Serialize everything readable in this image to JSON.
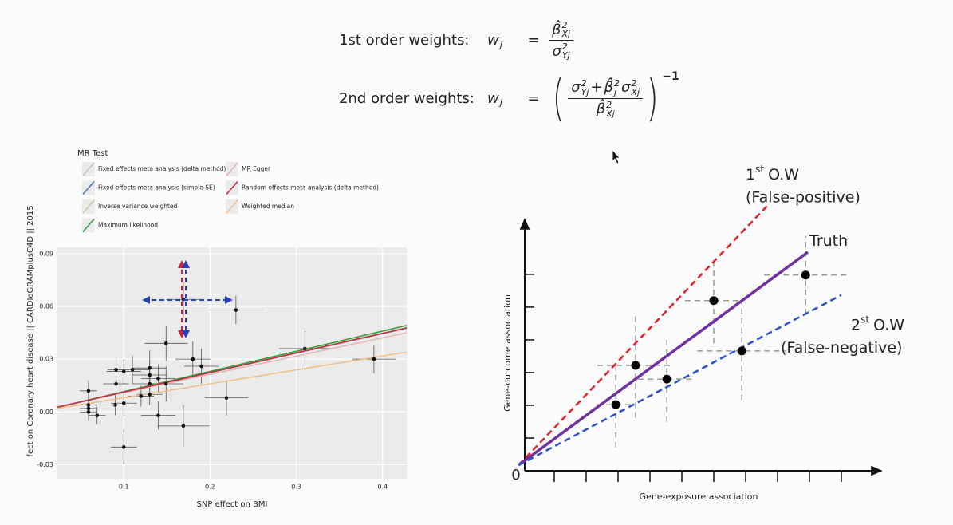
{
  "formulas": [
    {
      "label": "1st order weights:",
      "lhs": {
        "base": "w",
        "sub": "j"
      },
      "eq": "=",
      "numerator": [
        {
          "base": "β̂",
          "sup": "2",
          "sub": "Xj"
        }
      ],
      "denominator": [
        {
          "base": "σ",
          "sup": "2",
          "sub": "Yj"
        }
      ]
    },
    {
      "label": "2nd order weights:",
      "lhs": {
        "base": "w",
        "sub": "j"
      },
      "eq": "=",
      "open": "(",
      "close": ")",
      "power": "−1",
      "numerator": [
        {
          "base": "σ",
          "sup": "2",
          "sub": "Yj"
        },
        {
          "base": "+"
        },
        {
          "base": "β̂",
          "sup": "2",
          "sub": "j"
        },
        {
          "base": "σ",
          "sup": "2",
          "sub": "Xj"
        }
      ],
      "denominator": [
        {
          "base": "β̂",
          "sup": "2",
          "sub": "Xj"
        }
      ]
    }
  ],
  "chart_data": [
    {
      "type": "scatter",
      "xlabel": "SNP effect on BMI",
      "ylabel": "fect on Coronary heart disease || CARDIoGRAMplusC4D || 2015",
      "legend_title": "MR Test",
      "legend": "top",
      "grid": true,
      "xlim": [
        0.023,
        0.428
      ],
      "ylim": [
        -0.038,
        0.0936
      ],
      "xticks": [
        0.1,
        0.2,
        0.3,
        0.4
      ],
      "yticks": [
        -0.03,
        {
          "value": 0,
          "label": "0.00"
        },
        0.03,
        0.06,
        0.09
      ],
      "points": {
        "color": "#111111",
        "x": [
          0.059,
          0.059,
          0.059,
          0.059,
          0.069,
          0.091,
          0.091,
          0.09,
          0.1,
          0.1,
          0.1,
          0.11,
          0.12,
          0.13,
          0.13,
          0.13,
          0.13,
          0.14,
          0.14,
          0.149,
          0.149,
          0.169,
          0.169,
          0.18,
          0.19,
          0.219,
          0.23,
          0.31,
          0.39
        ],
        "y": [
          0.012,
          0.004,
          0.002,
          0.0,
          -0.002,
          0.024,
          0.016,
          0.004,
          0.005,
          -0.02,
          0.023,
          0.024,
          0.009,
          0.025,
          0.021,
          0.016,
          0.01,
          0.019,
          -0.002,
          0.039,
          0.016,
          0.064,
          -0.008,
          0.03,
          0.026,
          0.008,
          0.058,
          0.036,
          0.03
        ],
        "xerr": [
          0.01,
          0.01,
          0.01,
          0.01,
          0.01,
          0.01,
          0.015,
          0.015,
          0.015,
          0.015,
          0.02,
          0.02,
          0.015,
          0.02,
          0.02,
          0.02,
          0.015,
          0.02,
          0.02,
          0.025,
          0.02,
          0.02,
          0.03,
          0.02,
          0.02,
          0.025,
          0.03,
          0.03,
          0.025
        ],
        "yerr": [
          0.006,
          0.005,
          0.005,
          0.005,
          0.005,
          0.007,
          0.006,
          0.006,
          0.007,
          0.01,
          0.007,
          0.008,
          0.006,
          0.01,
          0.008,
          0.008,
          0.006,
          0.008,
          0.008,
          0.01,
          0.01,
          0.01,
          0.012,
          0.01,
          0.01,
          0.01,
          0.008,
          0.01,
          0.008
        ]
      },
      "series": [
        {
          "name": "Fixed effects meta analysis (delta method)",
          "color": "#b9c3d8",
          "x": [
            0.023,
            0.428
          ],
          "y": [
            0.0027,
            0.0475
          ]
        },
        {
          "name": "Fixed effects meta analysis (simple SE)",
          "color": "#4d79b5",
          "x": [
            0.023,
            0.428
          ],
          "y": [
            0.0027,
            0.0478
          ]
        },
        {
          "name": "Inverse variance weighted",
          "color": "#b5d39a",
          "x": [
            0.023,
            0.428
          ],
          "y": [
            0.0027,
            0.048
          ]
        },
        {
          "name": "Maximum likelihood",
          "color": "#3a9a3a",
          "x": [
            0.023,
            0.428
          ],
          "y": [
            0.0027,
            0.0492
          ]
        },
        {
          "name": "MR Egger",
          "color": "#e4b6b6",
          "x": [
            0.023,
            0.428
          ],
          "y": [
            0.003,
            0.045
          ]
        },
        {
          "name": "Random effects meta analysis (delta method)",
          "color": "#c0303f",
          "x": [
            0.023,
            0.428
          ],
          "y": [
            0.0027,
            0.0478
          ]
        },
        {
          "name": "Weighted median",
          "color": "#f3c08a",
          "x": [
            0.023,
            0.428
          ],
          "y": [
            0.002,
            0.034
          ]
        }
      ]
    },
    {
      "type": "scatter",
      "xlabel": "Gene-exposure association",
      "ylabel": "Gene-outcome association",
      "origin_label": "0",
      "grid": false,
      "xlim": [
        0,
        11.25
      ],
      "ylim": [
        0,
        7.68
      ],
      "xticks": [
        1,
        2,
        3,
        4,
        5,
        6,
        7,
        8,
        9,
        10
      ],
      "yticks": [
        1,
        2,
        3,
        4,
        5,
        6
      ],
      "points": {
        "color": "#000000",
        "x": [
          2.93,
          3.55,
          4.53,
          6.0,
          6.88,
          8.88
        ],
        "y": [
          2.02,
          3.22,
          2.8,
          5.2,
          3.66,
          5.98
        ],
        "xerr": [
          0.6,
          1.2,
          0.9,
          0.9,
          1.4,
          1.3
        ],
        "yerr": [
          1.3,
          1.6,
          1.3,
          1.3,
          1.5,
          1.2
        ]
      },
      "series": [
        {
          "label": {
            "number": "1",
            "suffix": "st",
            "text": "O.W",
            "note": "(False-positive)"
          },
          "color": "#e0202a",
          "dash": true,
          "x": [
            -0.12,
            7.75
          ],
          "y": [
            0.17,
            8.17
          ]
        },
        {
          "label": {
            "text": "Truth"
          },
          "color": "#7030a0",
          "dash": false,
          "x": [
            -0.12,
            8.95
          ],
          "y": [
            0.17,
            6.68
          ]
        },
        {
          "label": {
            "number": "2",
            "suffix": "st",
            "text": "O.W",
            "note": "(False-negative)"
          },
          "color": "#2a4fd0",
          "dash": true,
          "x": [
            -0.12,
            10.0
          ],
          "y": [
            0.17,
            5.37
          ]
        }
      ]
    }
  ]
}
